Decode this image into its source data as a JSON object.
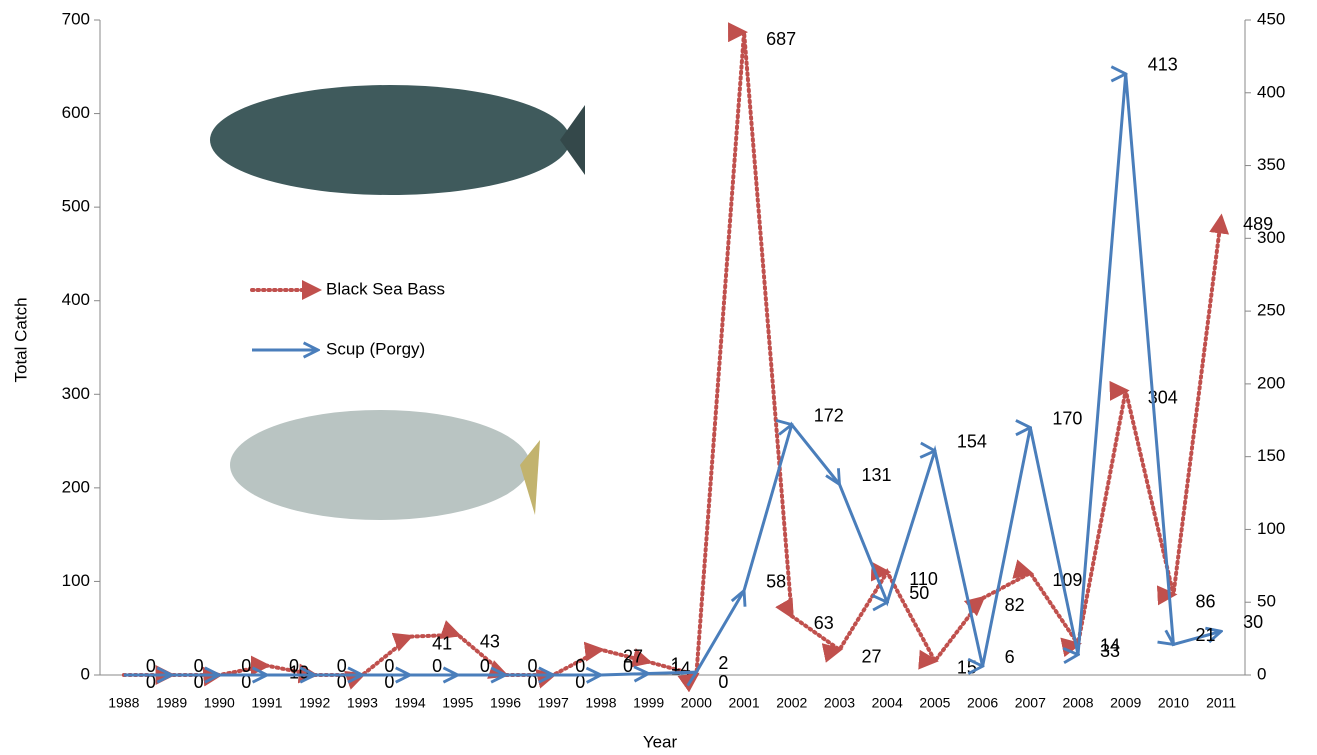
{
  "chart_data": {
    "type": "line",
    "x_label": "Year",
    "y_label": "Total Catch",
    "categories": [
      "1988",
      "1989",
      "1990",
      "1991",
      "1992",
      "1993",
      "1994",
      "1995",
      "1996",
      "1997",
      "1998",
      "1999",
      "2000",
      "2001",
      "2002",
      "2003",
      "2004",
      "2005",
      "2006",
      "2007",
      "2008",
      "2009",
      "2010",
      "2011"
    ],
    "series": [
      {
        "name": "Black Sea Bass",
        "color": "#c0504d",
        "style": "dotted",
        "axis": "y",
        "values": [
          0,
          0,
          0,
          10,
          0,
          0,
          41,
          43,
          0,
          0,
          27,
          14,
          0,
          687,
          63,
          27,
          110,
          15,
          82,
          109,
          33,
          304,
          86,
          489
        ]
      },
      {
        "name": "Scup (Porgy)",
        "color": "#4a7ebb",
        "style": "solid",
        "axis": "y2",
        "values": [
          0,
          0,
          0,
          0,
          0,
          0,
          0,
          0,
          0,
          0,
          0,
          1,
          2,
          58,
          172,
          131,
          50,
          154,
          6,
          170,
          14,
          413,
          21,
          30
        ]
      }
    ],
    "ylim": [
      0,
      700
    ],
    "yticks": [
      0,
      100,
      200,
      300,
      400,
      500,
      600,
      700
    ],
    "y2lim": [
      0,
      450
    ],
    "y2ticks": [
      0,
      50,
      100,
      150,
      200,
      250,
      300,
      350,
      400,
      450
    ]
  }
}
